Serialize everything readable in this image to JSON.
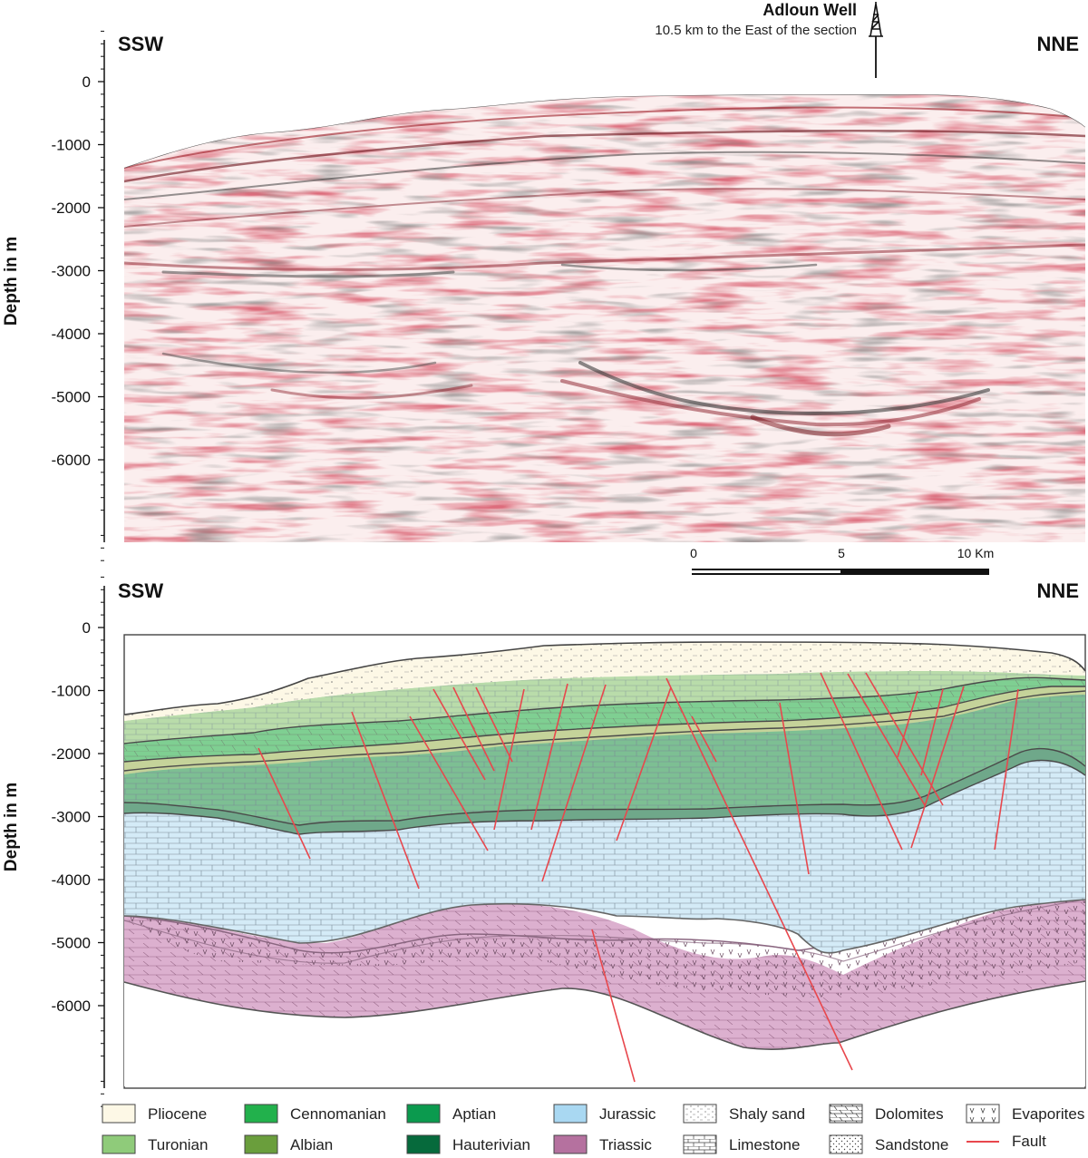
{
  "well": {
    "name": "Adloun Well",
    "note": "10.5 km to the East of the section"
  },
  "seismic_panel": {
    "left_dir": "SSW",
    "right_dir": "NNE",
    "y_label": "Depth in m",
    "depth_ticks": [
      "0",
      "-1000",
      "-2000",
      "-3000",
      "-4000",
      "-5000",
      "-6000"
    ]
  },
  "scale_bar": {
    "labels": [
      "0",
      "5",
      "10 Km"
    ]
  },
  "geology_panel": {
    "left_dir": "SSW",
    "right_dir": "NNE",
    "y_label": "Depth in m",
    "depth_ticks": [
      "0",
      "-1000",
      "-2000",
      "-3000",
      "-4000",
      "-5000",
      "-6000"
    ]
  },
  "legend": {
    "items": [
      {
        "label": "Pliocene",
        "type": "swatch",
        "color": "#fdf8e6"
      },
      {
        "label": "Cennomanian",
        "type": "swatch",
        "color": "#22b14c"
      },
      {
        "label": "Aptian",
        "type": "swatch",
        "color": "#0b9a4e"
      },
      {
        "label": "Jurassic",
        "type": "swatch",
        "color": "#a9d8f2"
      },
      {
        "label": "Shaly sand",
        "type": "pattern",
        "pattern": "shaly-sand"
      },
      {
        "label": "Dolomites",
        "type": "pattern",
        "pattern": "dolomite"
      },
      {
        "label": "Evaporites",
        "type": "pattern",
        "pattern": "evaporite"
      },
      {
        "label": "Turonian",
        "type": "swatch",
        "color": "#8fcb7a"
      },
      {
        "label": "Albian",
        "type": "swatch",
        "color": "#6a9e3c"
      },
      {
        "label": "Hauterivian",
        "type": "swatch",
        "color": "#066a3c"
      },
      {
        "label": "Triassic",
        "type": "swatch",
        "color": "#b5719f"
      },
      {
        "label": "Limestone",
        "type": "pattern",
        "pattern": "limestone"
      },
      {
        "label": "Sandstone",
        "type": "pattern",
        "pattern": "sandstone"
      },
      {
        "label": "Fault",
        "type": "line",
        "color": "#e8474d"
      }
    ]
  },
  "colors": {
    "pliocene": "#fdf8e6",
    "turonian": "#b9dcaa",
    "cenomanian": "#7fcf92",
    "albian": "#b8c88a",
    "aptian": "#5fb57e",
    "hauterivian": "#5e9a78",
    "jurassic": "#cfe9f6",
    "triassic": "#d9a9cc",
    "fault": "#e8474d",
    "seismic_red": "#b2182b",
    "seismic_dark": "#3a3a3a"
  }
}
